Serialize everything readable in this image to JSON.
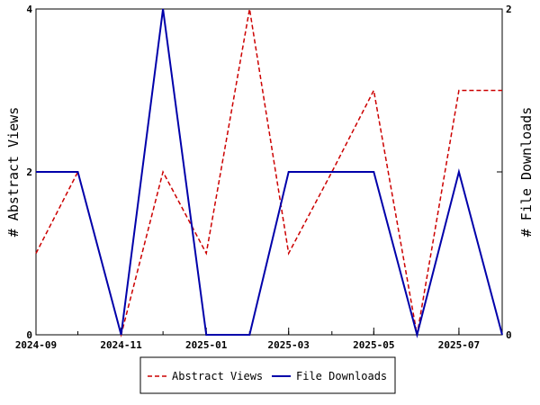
{
  "chart_data": {
    "type": "line",
    "title": "",
    "x": [
      "2024-09-01",
      "2024-10-01",
      "2024-11-01",
      "2024-12-01",
      "2025-01-01",
      "2025-02-01",
      "2025-03-01",
      "2025-04-01",
      "2025-05-01",
      "2025-06-01",
      "2025-07-01",
      "2025-08-01"
    ],
    "x_ticks": [
      "2024-09",
      "2024-11",
      "2025-01",
      "2025-03",
      "2025-05",
      "2025-07"
    ],
    "x_range": [
      "2024-09-01",
      "2025-08-01"
    ],
    "y_left": {
      "label": "# Abstract Views",
      "range": [
        0,
        4
      ],
      "ticks": [
        "0",
        "2",
        "4"
      ]
    },
    "y_right": {
      "label": "# File Downloads",
      "range": [
        0,
        2
      ],
      "ticks": [
        "0",
        "1",
        "2"
      ]
    },
    "series": [
      {
        "name": "Abstract Views",
        "axis": "left",
        "color": "#cc0000",
        "style": "dashed",
        "values": [
          1,
          2,
          0,
          2,
          1,
          4,
          1,
          2,
          3,
          0,
          3,
          3
        ]
      },
      {
        "name": "File Downloads",
        "axis": "right",
        "color": "#0000aa",
        "style": "solid",
        "values": [
          1,
          1,
          0,
          2,
          0,
          0,
          1,
          1,
          1,
          0,
          1,
          0
        ]
      }
    ],
    "grid": false,
    "legend_position": "bottom-center"
  }
}
